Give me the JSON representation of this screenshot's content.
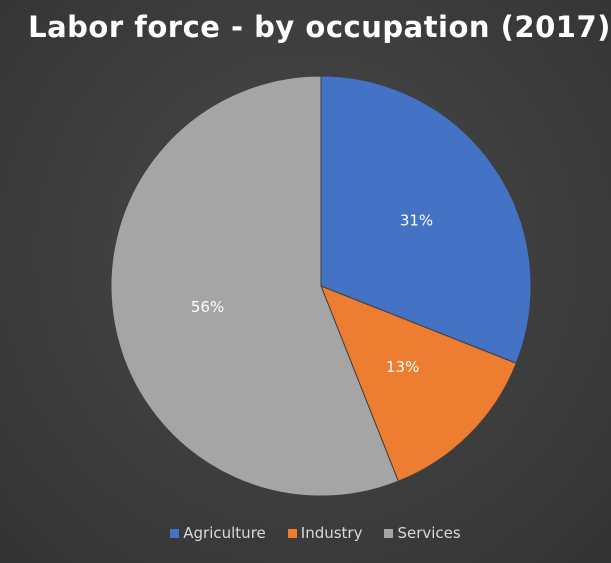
{
  "chart_data": {
    "type": "pie",
    "title": "Labor force - by occupation (2017)",
    "categories": [
      "Agriculture",
      "Industry",
      "Services"
    ],
    "values": [
      31,
      13,
      56
    ],
    "labels": [
      "31%",
      "13%",
      "56%"
    ],
    "colors": [
      "#4472c4",
      "#ed7d31",
      "#a5a5a5"
    ],
    "legend_position": "bottom"
  }
}
